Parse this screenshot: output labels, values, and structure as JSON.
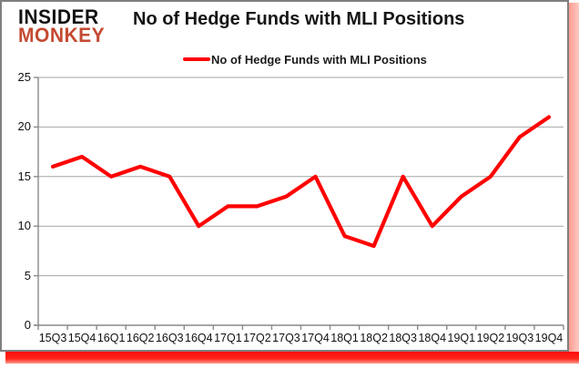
{
  "window": {
    "logo": {
      "line1": "INSIDER",
      "line2": "MONKEY"
    },
    "title": "No of Hedge Funds with MLI Positions",
    "legend": {
      "label": "No of Hedge Funds with MLI Positions"
    }
  },
  "chart_data": {
    "type": "line",
    "title": "No of Hedge Funds with MLI Positions",
    "categories": [
      "15Q3",
      "15Q4",
      "16Q1",
      "16Q2",
      "16Q3",
      "16Q4",
      "17Q1",
      "17Q2",
      "17Q3",
      "17Q4",
      "18Q1",
      "18Q2",
      "18Q3",
      "18Q4",
      "19Q1",
      "19Q2",
      "19Q3",
      "19Q4"
    ],
    "series": [
      {
        "name": "No of Hedge Funds with MLI Positions",
        "color": "#ff0000",
        "values": [
          16,
          17,
          15,
          16,
          15,
          10,
          12,
          12,
          13,
          15,
          9,
          8,
          15,
          10,
          13,
          15,
          19,
          21
        ]
      }
    ],
    "xlabel": "",
    "ylabel": "",
    "ylim": [
      0,
      25
    ],
    "yticks": [
      0,
      5,
      10,
      15,
      20,
      25
    ],
    "grid": true,
    "legend_position": "top-center"
  },
  "colors": {
    "series_line": "#ff0000",
    "logo_red": "#c44a31",
    "gridline": "#a6a6a6",
    "axis": "#8a8a8a",
    "frame_border": "#7f7f7f",
    "shadow_bottom": "#ff0f0f",
    "shadow_right": "#ffb4ac"
  }
}
